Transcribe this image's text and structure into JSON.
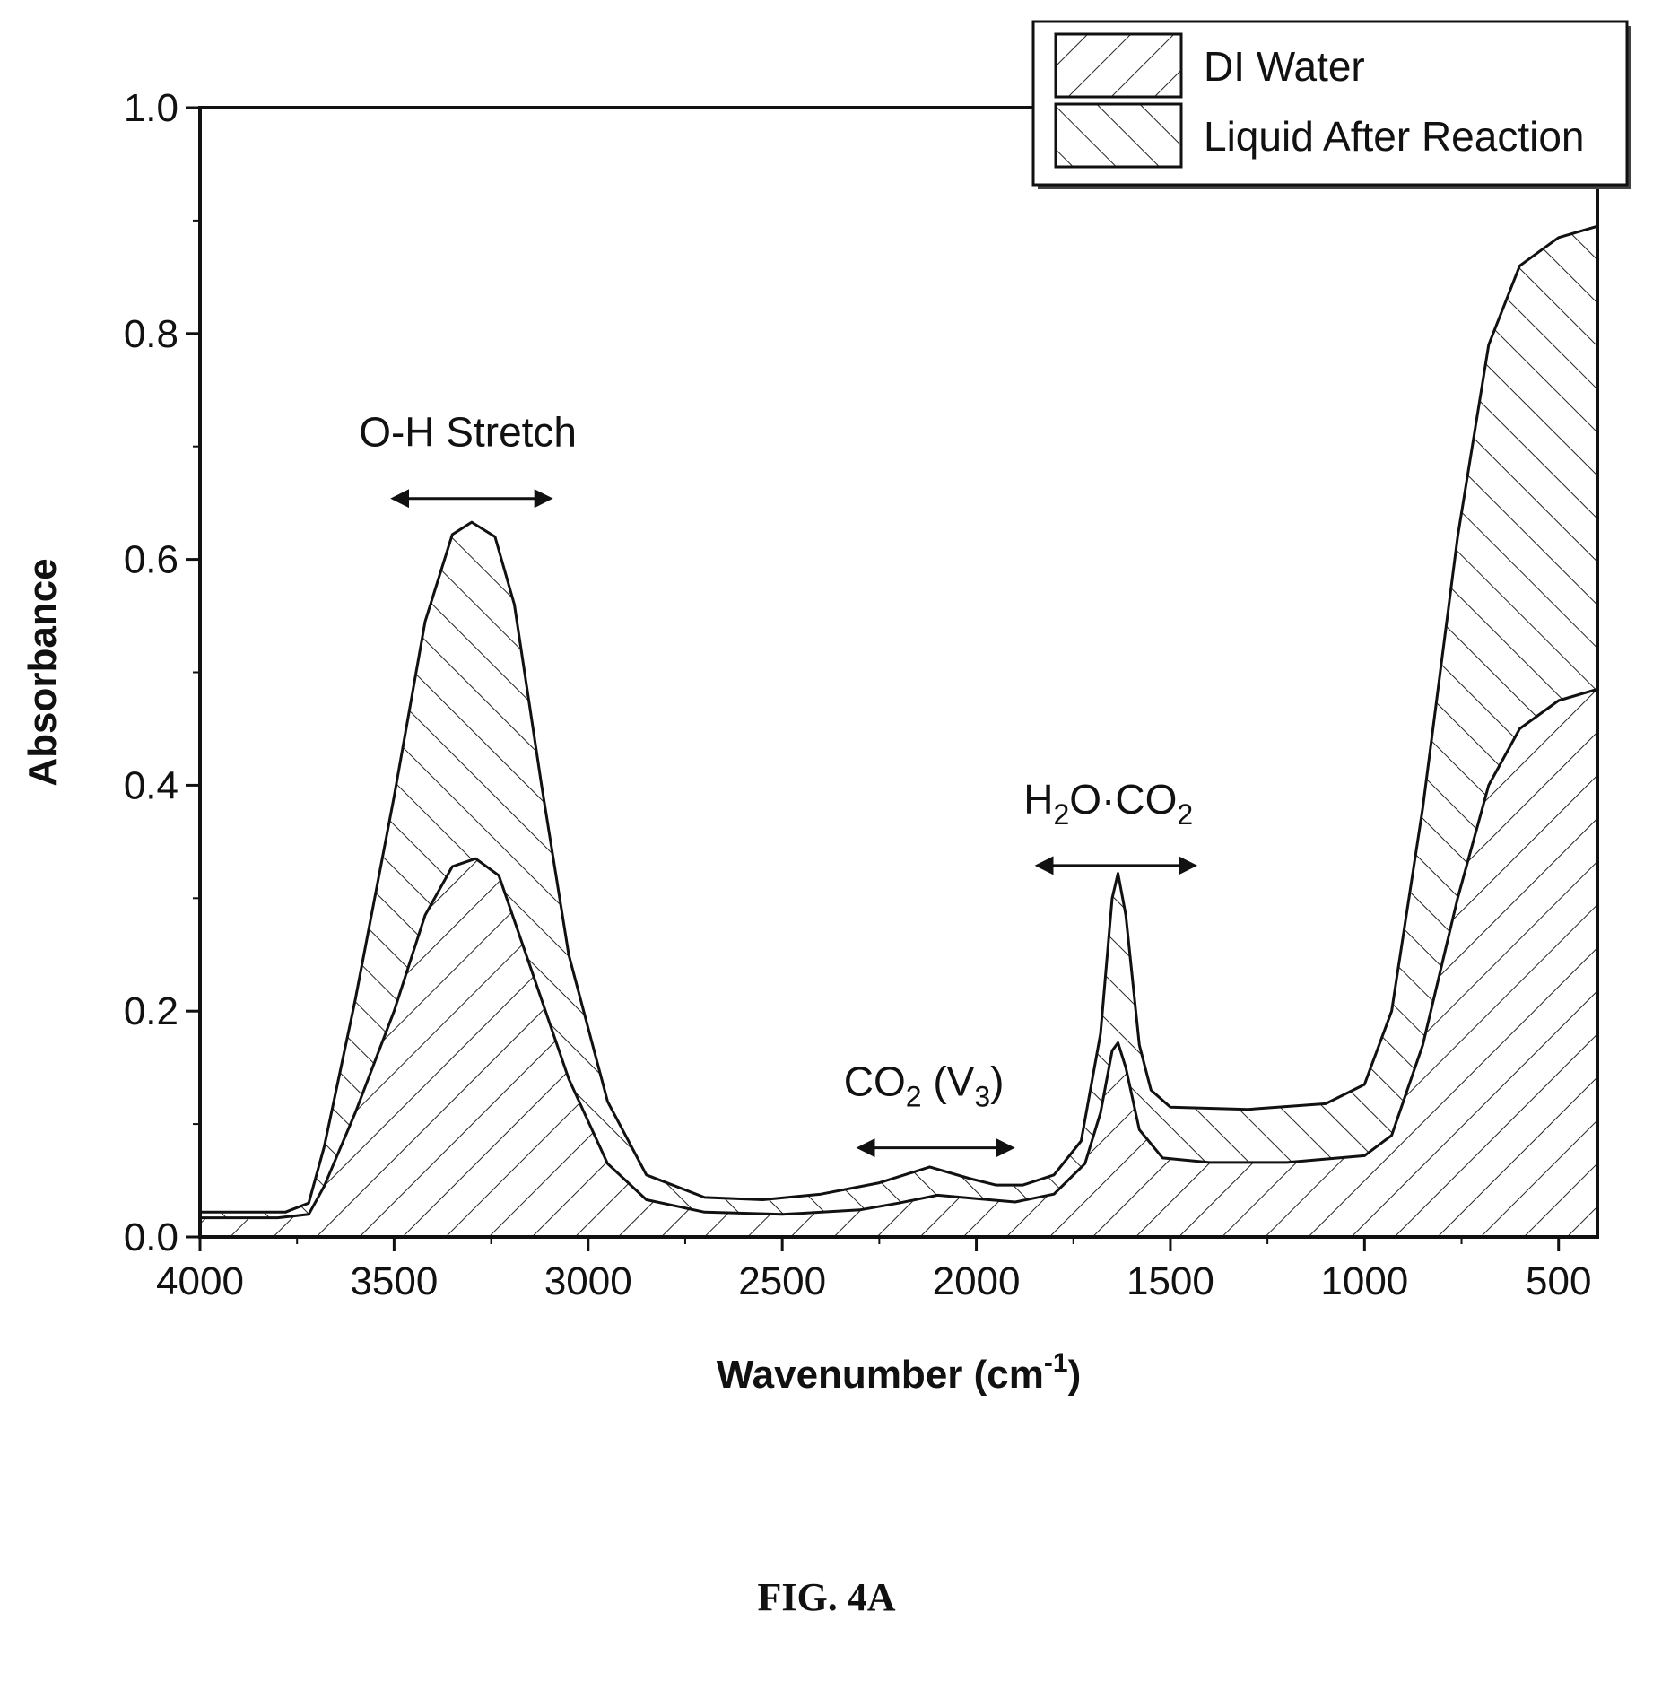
{
  "figure_label": "FIG. 4A",
  "chart_data": {
    "type": "area",
    "xlabel": "Wavenumber (cm",
    "xlabel_sup": "-1",
    "xlabel_end": ")",
    "ylabel": "Absorbance",
    "xlim": [
      4000,
      400
    ],
    "ylim": [
      0.0,
      1.0
    ],
    "x_reversed": true,
    "x_ticks": [
      {
        "value": 4000,
        "label": "4000"
      },
      {
        "value": 3500,
        "label": "3500"
      },
      {
        "value": 3000,
        "label": "3000"
      },
      {
        "value": 2500,
        "label": "2500"
      },
      {
        "value": 2000,
        "label": "2000"
      },
      {
        "value": 1500,
        "label": "1500"
      },
      {
        "value": 1000,
        "label": "1000"
      },
      {
        "value": 500,
        "label": "500"
      }
    ],
    "y_ticks": [
      {
        "value": 0.0,
        "label": "0.0"
      },
      {
        "value": 0.2,
        "label": "0.2"
      },
      {
        "value": 0.4,
        "label": "0.4"
      },
      {
        "value": 0.6,
        "label": "0.6"
      },
      {
        "value": 0.8,
        "label": "0.8"
      },
      {
        "value": 1.0,
        "label": "1.0"
      }
    ],
    "grid": false,
    "legend_position": "top-right",
    "series": [
      {
        "name": "DI Water",
        "hatch": "backslash",
        "points": [
          [
            4000,
            0.017
          ],
          [
            3800,
            0.017
          ],
          [
            3720,
            0.02
          ],
          [
            3680,
            0.045
          ],
          [
            3600,
            0.11
          ],
          [
            3500,
            0.2
          ],
          [
            3420,
            0.285
          ],
          [
            3350,
            0.328
          ],
          [
            3290,
            0.335
          ],
          [
            3230,
            0.32
          ],
          [
            3150,
            0.24
          ],
          [
            3050,
            0.14
          ],
          [
            2950,
            0.065
          ],
          [
            2850,
            0.033
          ],
          [
            2700,
            0.022
          ],
          [
            2500,
            0.02
          ],
          [
            2300,
            0.024
          ],
          [
            2200,
            0.03
          ],
          [
            2100,
            0.037
          ],
          [
            2000,
            0.034
          ],
          [
            1900,
            0.031
          ],
          [
            1800,
            0.038
          ],
          [
            1720,
            0.065
          ],
          [
            1680,
            0.11
          ],
          [
            1650,
            0.165
          ],
          [
            1635,
            0.172
          ],
          [
            1615,
            0.15
          ],
          [
            1580,
            0.095
          ],
          [
            1520,
            0.07
          ],
          [
            1400,
            0.066
          ],
          [
            1200,
            0.066
          ],
          [
            1000,
            0.072
          ],
          [
            930,
            0.09
          ],
          [
            850,
            0.17
          ],
          [
            760,
            0.3
          ],
          [
            680,
            0.4
          ],
          [
            600,
            0.45
          ],
          [
            500,
            0.475
          ],
          [
            400,
            0.485
          ]
        ]
      },
      {
        "name": "Liquid After Reaction",
        "hatch": "slash",
        "points": [
          [
            4000,
            0.022
          ],
          [
            3780,
            0.022
          ],
          [
            3720,
            0.03
          ],
          [
            3680,
            0.08
          ],
          [
            3600,
            0.21
          ],
          [
            3500,
            0.39
          ],
          [
            3420,
            0.545
          ],
          [
            3350,
            0.622
          ],
          [
            3300,
            0.633
          ],
          [
            3240,
            0.62
          ],
          [
            3190,
            0.56
          ],
          [
            3120,
            0.4
          ],
          [
            3050,
            0.25
          ],
          [
            2950,
            0.12
          ],
          [
            2850,
            0.055
          ],
          [
            2700,
            0.035
          ],
          [
            2550,
            0.033
          ],
          [
            2400,
            0.038
          ],
          [
            2250,
            0.048
          ],
          [
            2120,
            0.062
          ],
          [
            2020,
            0.052
          ],
          [
            1950,
            0.046
          ],
          [
            1880,
            0.046
          ],
          [
            1800,
            0.055
          ],
          [
            1730,
            0.085
          ],
          [
            1680,
            0.18
          ],
          [
            1650,
            0.3
          ],
          [
            1635,
            0.322
          ],
          [
            1615,
            0.285
          ],
          [
            1580,
            0.17
          ],
          [
            1550,
            0.13
          ],
          [
            1500,
            0.115
          ],
          [
            1300,
            0.113
          ],
          [
            1100,
            0.118
          ],
          [
            1000,
            0.135
          ],
          [
            930,
            0.2
          ],
          [
            850,
            0.38
          ],
          [
            760,
            0.62
          ],
          [
            680,
            0.79
          ],
          [
            600,
            0.86
          ],
          [
            500,
            0.885
          ],
          [
            400,
            0.895
          ]
        ]
      }
    ],
    "annotations": [
      {
        "text": "O-H Stretch",
        "x": 3310,
        "y": 0.7,
        "range": [
          3500,
          3100
        ]
      },
      {
        "text": "CO",
        "sub": "2",
        "rest": " (V",
        "rest_sub": "3",
        "end": ")",
        "x": 2135,
        "y": 0.125,
        "range": [
          2300,
          1910
        ]
      },
      {
        "text": "H",
        "sub": "2",
        "rest": "O·CO",
        "rest_sub": "2",
        "end": "",
        "x": 1660,
        "y": 0.375,
        "range": [
          1840,
          1440
        ]
      }
    ]
  }
}
